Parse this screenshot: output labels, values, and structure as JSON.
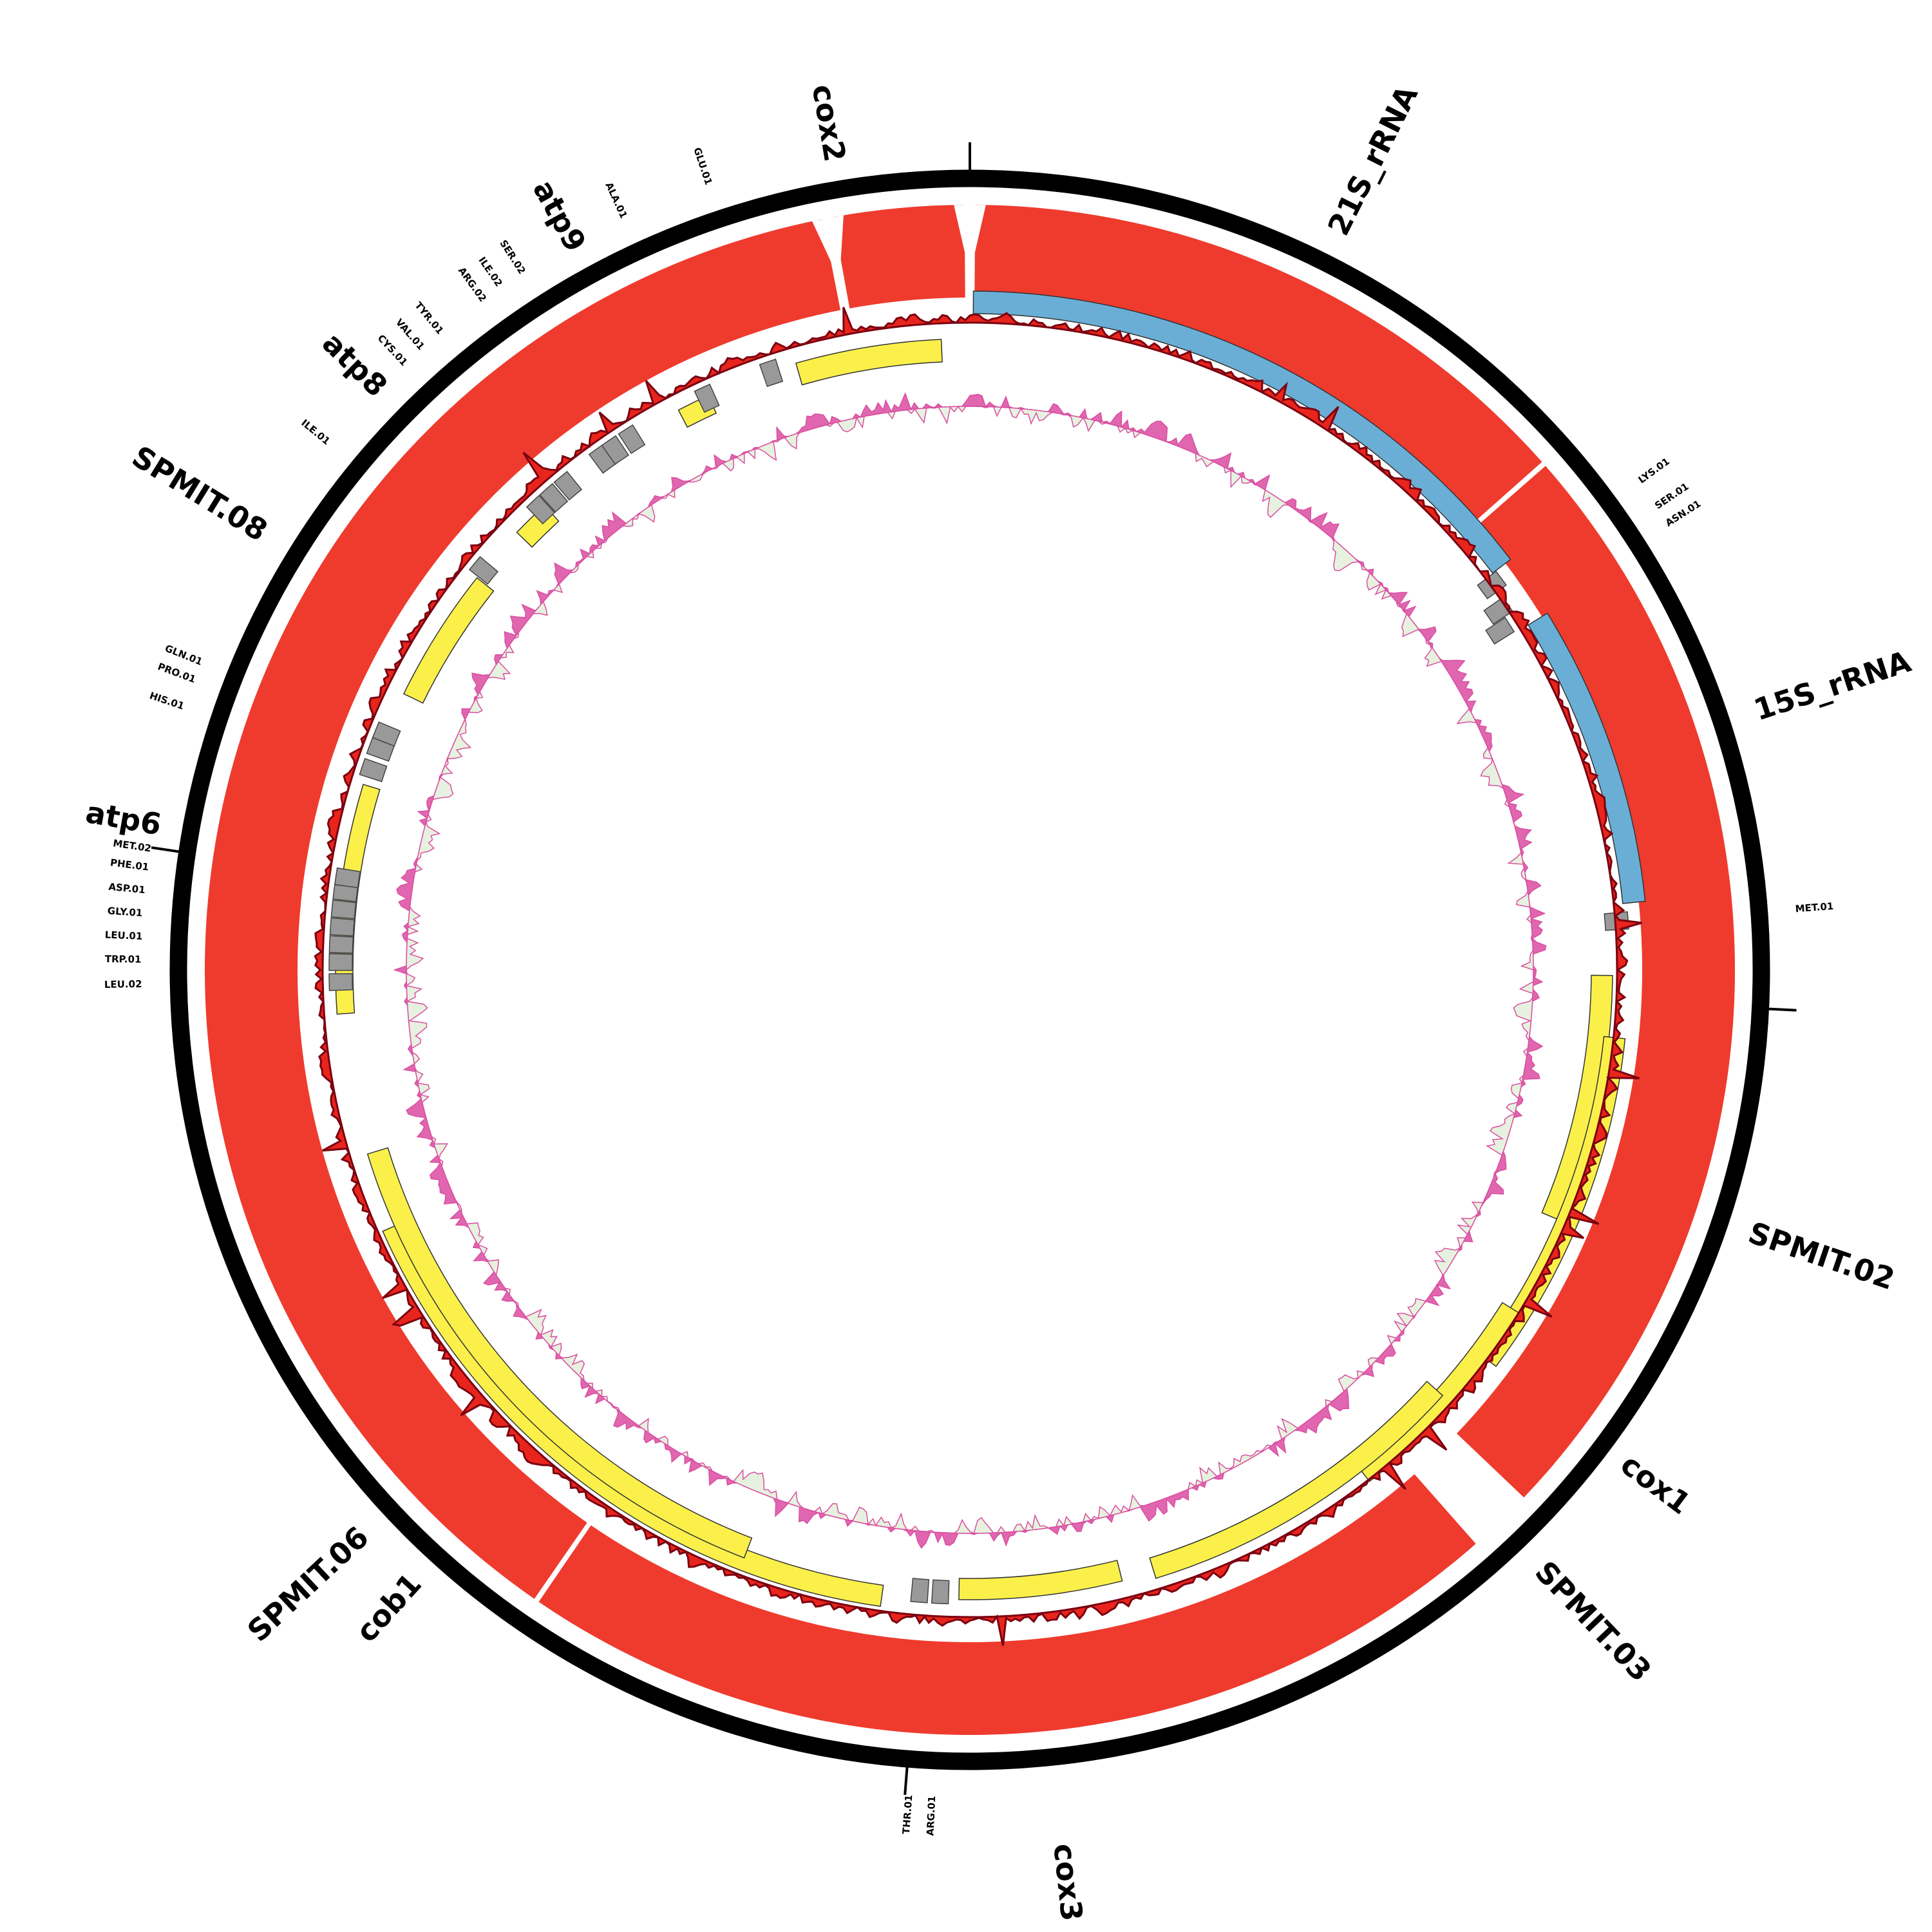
{
  "genes": [
    "cox2",
    "21S_rRNA",
    "15S_rRNA",
    "SPMIT.02",
    "cox1",
    "SPMIT.03",
    "cox3",
    "cob1",
    "SPMIT.06",
    "atp6",
    "SPMIT.08",
    "atp8",
    "atp9"
  ],
  "trnas": [
    "GLU.01",
    "ALA.01",
    "SER.02",
    "ILE.02",
    "ARG.02",
    "TYR.01",
    "VAL.01",
    "CYS.01",
    "ILE.01",
    "GLN.01",
    "PRO.01",
    "HIS.01",
    "LEU.02",
    "TRP.01",
    "LEU.01",
    "GLY.01",
    "ASP.01",
    "PHE.01",
    "MET.02",
    "THR.01",
    "ARG.01",
    "LYS.01",
    "SER.01",
    "ASN.01",
    "MET.01"
  ]
}
